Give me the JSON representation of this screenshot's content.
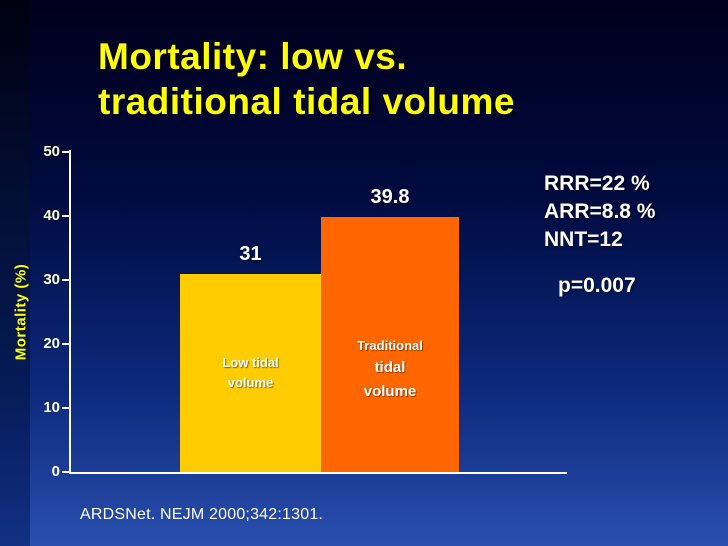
{
  "title": {
    "line1": "Mortality: low vs.",
    "line2": "traditional tidal volume"
  },
  "chart_data": {
    "type": "bar",
    "title": "Mortality: low vs. traditional tidal volume",
    "xlabel": "",
    "ylabel": "Mortality (%)",
    "ylim": [
      0,
      50
    ],
    "yticks": [
      0,
      10,
      20,
      30,
      40,
      50
    ],
    "categories": [
      "Low tidal volume",
      "Traditional tidal volume"
    ],
    "values": [
      31,
      39.8
    ],
    "value_labels": [
      "31",
      "39.8"
    ],
    "bar_colors": [
      "#ffcc00",
      "#ff6600"
    ],
    "grid": false,
    "legend": "none"
  },
  "bars": [
    {
      "label_lines": [
        "Low tidal",
        "volume"
      ]
    },
    {
      "label_lines": [
        "Traditional",
        "tidal",
        "volume"
      ]
    }
  ],
  "stats": {
    "line1": "RRR=22 %",
    "line2": "ARR=8.8 %",
    "line3": "NNT=12",
    "p_value": "p=0.007"
  },
  "citation": "ARDSNet. NEJM 2000;342:1301.",
  "colors": {
    "background_top": "#00001c",
    "background_bottom": "#2a4fae",
    "title_text": "#ffff00",
    "axis": "#ffffff",
    "tick_text": "#ffffcc",
    "bar_low": "#ffcc00",
    "bar_traditional": "#ff6600",
    "stats_text": "#ffffff"
  }
}
